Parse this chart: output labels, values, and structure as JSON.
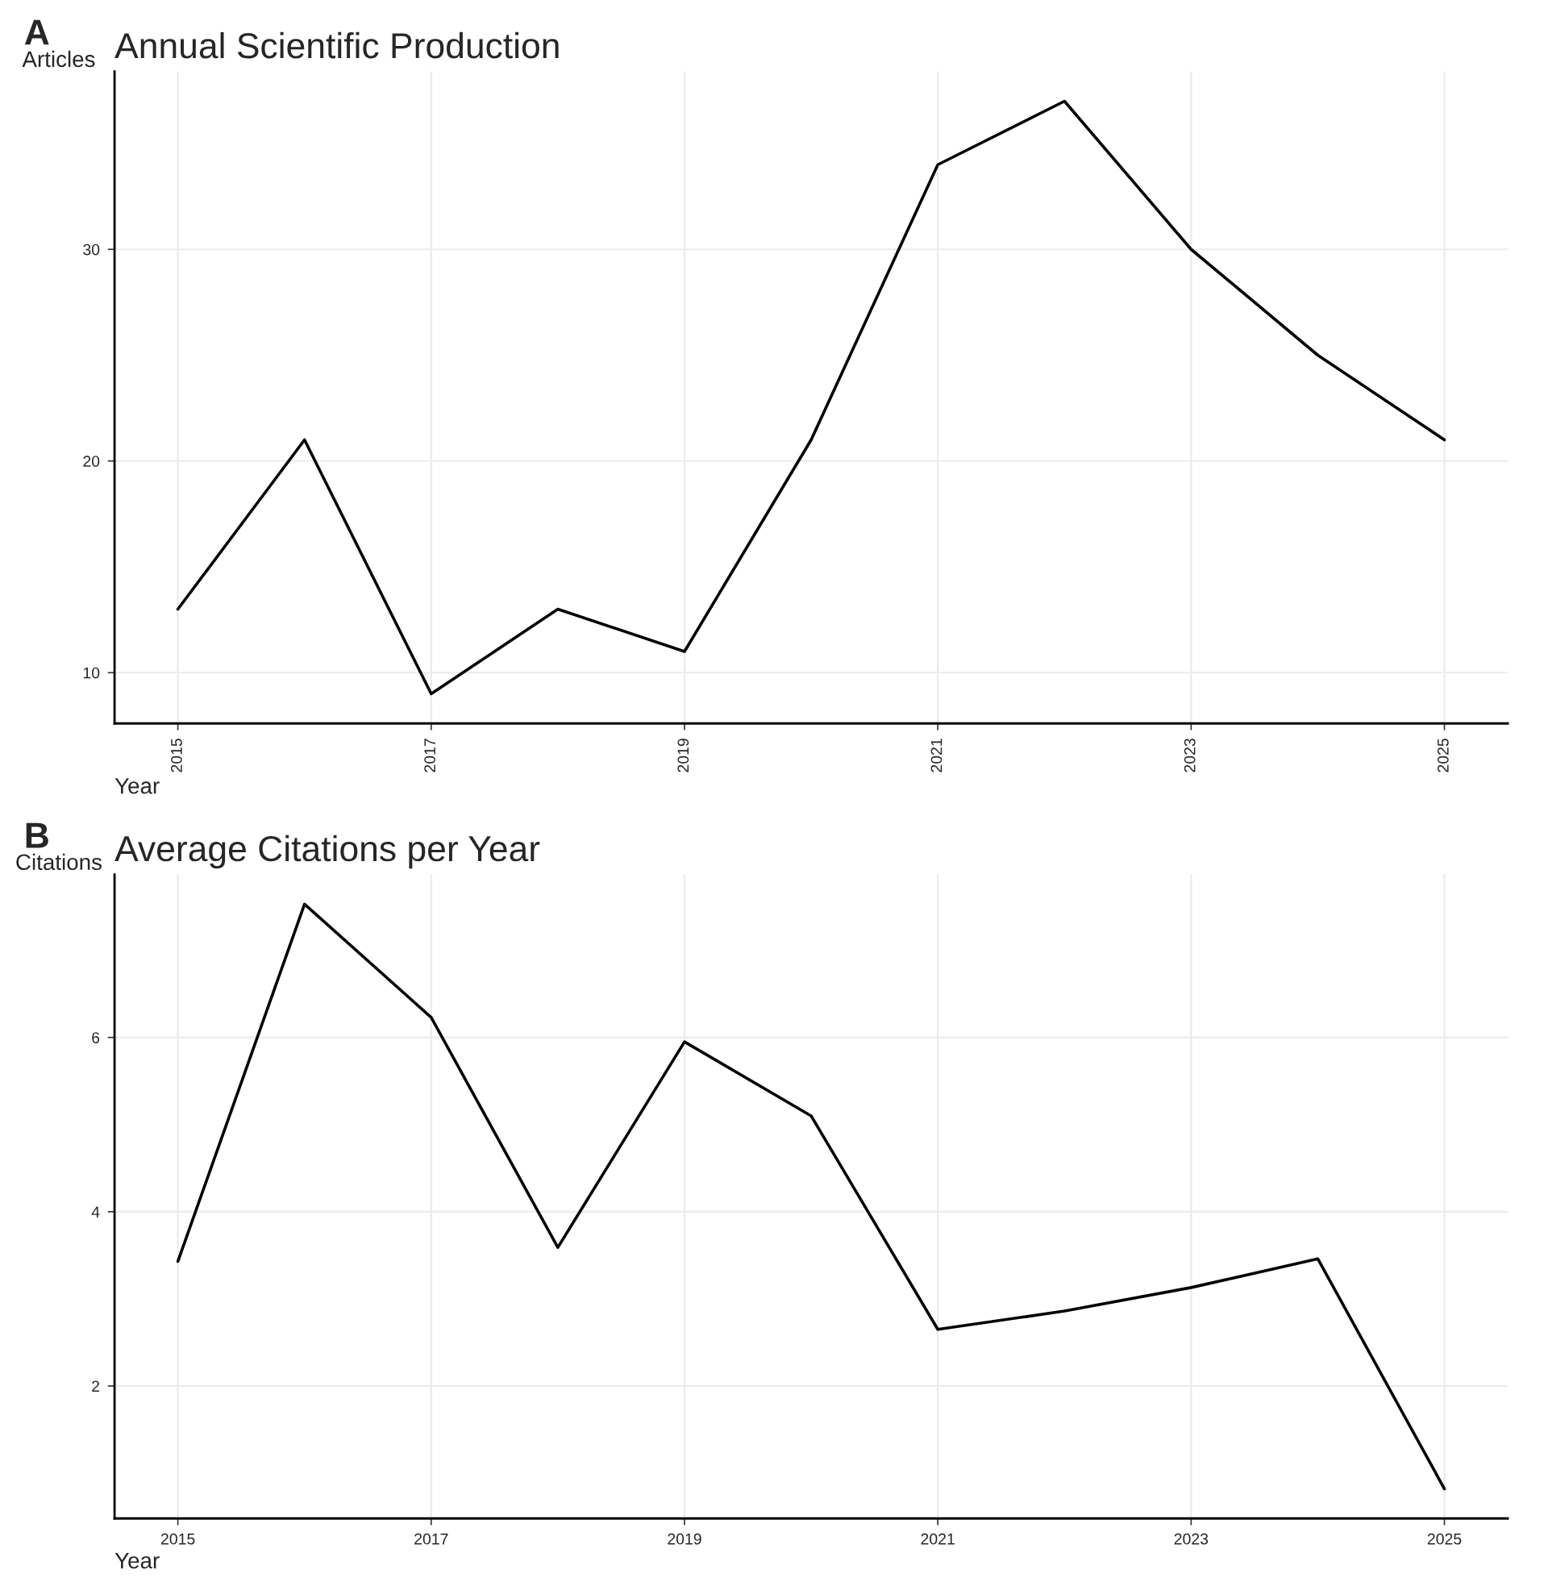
{
  "chart_data": [
    {
      "type": "line",
      "title": "Annual Scientific Production",
      "xlabel": "Year",
      "ylabel": "Articles",
      "annotations": [
        "A"
      ],
      "x": [
        2015,
        2016,
        2017,
        2018,
        2019,
        2020,
        2021,
        2022,
        2023,
        2024,
        2025
      ],
      "series": [
        {
          "color": "#000000",
          "values": [
            13,
            21,
            9,
            13,
            11,
            21,
            34,
            37,
            30,
            25,
            21
          ]
        }
      ],
      "xlim": [
        2014.5,
        2025.5
      ],
      "xticks": [
        2015,
        2017,
        2019,
        2021,
        2023,
        2025
      ],
      "ylim": [
        7.6,
        38.4
      ],
      "yticks": [
        10,
        20,
        30
      ],
      "grid": true,
      "marker": "none",
      "line_style": "solid"
    },
    {
      "type": "line",
      "title": "Average Citations per Year",
      "xlabel": "Year",
      "ylabel": "Citations",
      "annotations": [
        "B"
      ],
      "x": [
        2015,
        2016,
        2017,
        2018,
        2019,
        2020,
        2021,
        2022,
        2023,
        2024,
        2025
      ],
      "series": [
        {
          "color": "#000000",
          "values": [
            3.43,
            7.53,
            6.23,
            3.59,
            5.95,
            5.1,
            2.65,
            2.86,
            3.13,
            3.46,
            0.82
          ]
        }
      ],
      "xlim": [
        2014.5,
        2025.5
      ],
      "xticks": [
        2015,
        2017,
        2019,
        2021,
        2023,
        2025
      ],
      "ylim": [
        0.48,
        7.87
      ],
      "yticks": [
        2,
        4,
        6
      ],
      "grid": true,
      "marker": "none",
      "line_style": "solid"
    }
  ]
}
